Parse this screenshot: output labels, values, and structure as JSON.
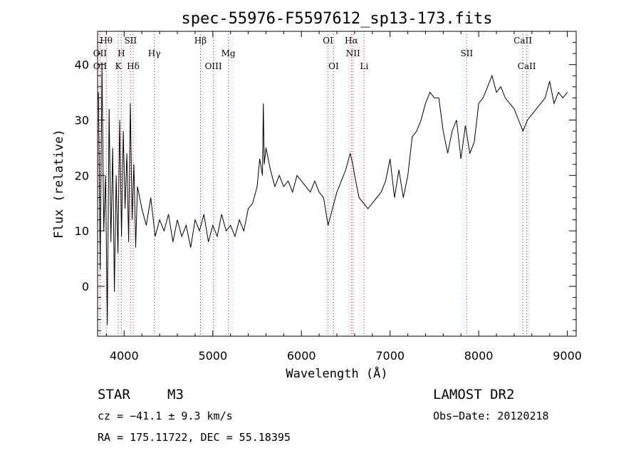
{
  "chart_data": {
    "type": "line",
    "title": "spec-55976-F5597612_sp13-173.fits",
    "xlabel": "Wavelength (Å)",
    "ylabel": "Flux (relative)",
    "xlim": [
      3700,
      9100
    ],
    "ylim": [
      -9,
      46
    ],
    "xticks": [
      4000,
      5000,
      6000,
      7000,
      8000,
      9000
    ],
    "yticks": [
      0,
      10,
      20,
      30,
      40
    ],
    "colors": {
      "spectrum": "#000000",
      "lines": "#d02020",
      "axes": "#000000"
    },
    "series": [
      {
        "x": [
          3710,
          3730,
          3750,
          3770,
          3790,
          3810,
          3830,
          3850,
          3870,
          3890,
          3910,
          3930,
          3950,
          3970,
          3990,
          4010,
          4030,
          4050,
          4070,
          4090,
          4110,
          4130,
          4150,
          4200,
          4250,
          4300,
          4350,
          4400,
          4450,
          4500,
          4550,
          4600,
          4650,
          4700,
          4750,
          4800,
          4850,
          4900,
          4950,
          5000,
          5050,
          5100,
          5150,
          5200,
          5250,
          5300,
          5350,
          5400,
          5450,
          5500,
          5530,
          5560,
          5570,
          5580,
          5600,
          5650,
          5700,
          5750,
          5800,
          5850,
          5900,
          5950,
          6000,
          6050,
          6100,
          6150,
          6200,
          6250,
          6300,
          6350,
          6400,
          6450,
          6500,
          6550,
          6580,
          6600,
          6650,
          6700,
          6750,
          6800,
          6850,
          6900,
          6950,
          7000,
          7050,
          7100,
          7150,
          7200,
          7250,
          7300,
          7350,
          7400,
          7450,
          7500,
          7550,
          7600,
          7650,
          7700,
          7750,
          7800,
          7850,
          7900,
          7950,
          8000,
          8050,
          8100,
          8150,
          8200,
          8250,
          8300,
          8350,
          8400,
          8450,
          8500,
          8550,
          8600,
          8650,
          8700,
          8750,
          8800,
          8850,
          8900,
          8950,
          9000
        ],
        "y": [
          35,
          3,
          40,
          10,
          20,
          -7,
          32,
          8,
          25,
          -1,
          20,
          6,
          30,
          9,
          28,
          14,
          24,
          8,
          33,
          12,
          22,
          7,
          18,
          14,
          11,
          16,
          9,
          12,
          10,
          13,
          8,
          12,
          9,
          11,
          7,
          12,
          10,
          13,
          8,
          11,
          9,
          13,
          10,
          11,
          9,
          12,
          10,
          14,
          15,
          18,
          23,
          20,
          33,
          22,
          25,
          21,
          18,
          20,
          18,
          19,
          17,
          20,
          19,
          18,
          17,
          19,
          17,
          16,
          11,
          14,
          17,
          19,
          21,
          24,
          22,
          20,
          16,
          15,
          14,
          15,
          16,
          17,
          19,
          23,
          16,
          21,
          16,
          20,
          27,
          28,
          30,
          33,
          35,
          34,
          34,
          28,
          24,
          28,
          30,
          23,
          29,
          24,
          26,
          33,
          34,
          36,
          38,
          35,
          36,
          34,
          33,
          32,
          30,
          28,
          30,
          31,
          32,
          33,
          34,
          37,
          33,
          35,
          34,
          35
        ]
      }
    ],
    "spectral_lines": [
      {
        "name": "Hθ",
        "wavelength": 3798,
        "row": 0
      },
      {
        "name": "OII",
        "wavelength": 3727,
        "row": 1
      },
      {
        "name": "OII",
        "wavelength": 3729,
        "row": 2
      },
      {
        "name": "SII",
        "wavelength": 4072,
        "row": 0
      },
      {
        "name": "H",
        "wavelength": 3968,
        "row": 1
      },
      {
        "name": "K",
        "wavelength": 3934,
        "row": 2
      },
      {
        "name": "Hδ",
        "wavelength": 4102,
        "row": 2
      },
      {
        "name": "Hγ",
        "wavelength": 4340,
        "row": 1
      },
      {
        "name": "Hβ",
        "wavelength": 4861,
        "row": 0
      },
      {
        "name": "Mg",
        "wavelength": 5175,
        "row": 1
      },
      {
        "name": "OIII",
        "wavelength": 5007,
        "row": 2
      },
      {
        "name": "OI",
        "wavelength": 6300,
        "row": 0
      },
      {
        "name": "OI",
        "wavelength": 6363,
        "row": 2
      },
      {
        "name": "Hα",
        "wavelength": 6563,
        "row": 0
      },
      {
        "name": "NII",
        "wavelength": 6583,
        "row": 1
      },
      {
        "name": "Li",
        "wavelength": 6708,
        "row": 2
      },
      {
        "name": "SII",
        "wavelength": 7865,
        "row": 1
      },
      {
        "name": "CaII",
        "wavelength": 8498,
        "row": 0
      },
      {
        "name": "CaII",
        "wavelength": 8542,
        "row": 2
      }
    ]
  },
  "info": {
    "obj_class": "STAR",
    "subclass": "M3",
    "survey": "LAMOST DR2",
    "cz": "cz = −41.1 ± 9.3 km/s",
    "obs_date": "Obs−Date: 20120218",
    "coords": "RA = 175.11722, DEC =  55.18395"
  }
}
